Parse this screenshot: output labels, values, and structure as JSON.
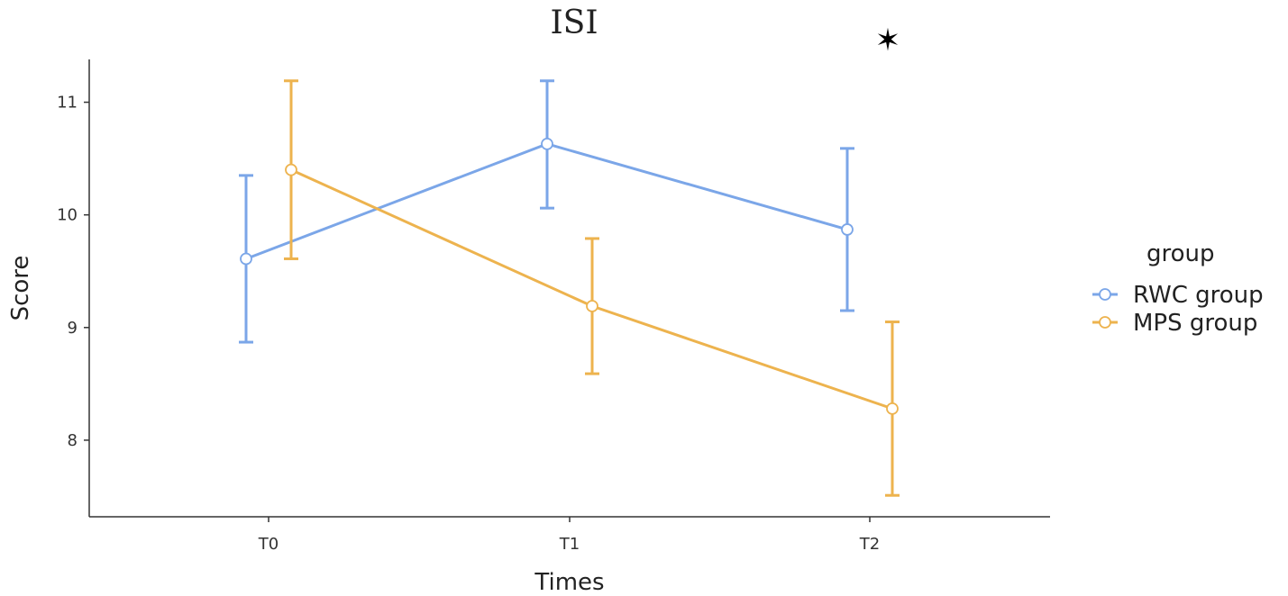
{
  "chart_data": {
    "type": "line",
    "title": "ISI",
    "xlabel": "Times",
    "ylabel": "Score",
    "categories": [
      "T0",
      "T1",
      "T2"
    ],
    "y_ticks": [
      "8",
      "9",
      "10",
      "11"
    ],
    "ylim": [
      7.32,
      11.38
    ],
    "grid": false,
    "legend": {
      "title": "group",
      "placement": "right"
    },
    "series": [
      {
        "name": "RWC group",
        "color": "#7BA6E8",
        "values": [
          9.61,
          10.63,
          9.87
        ],
        "error_lower": [
          8.87,
          10.06,
          9.15
        ],
        "error_upper": [
          10.35,
          11.19,
          10.59
        ]
      },
      {
        "name": "MPS group",
        "color": "#EDB34E",
        "values": [
          10.4,
          9.19,
          8.28
        ],
        "error_lower": [
          9.61,
          8.59,
          7.51
        ],
        "error_upper": [
          11.19,
          9.79,
          9.05
        ]
      }
    ],
    "annotations": [
      {
        "text": "✶",
        "category": "T2"
      }
    ]
  }
}
